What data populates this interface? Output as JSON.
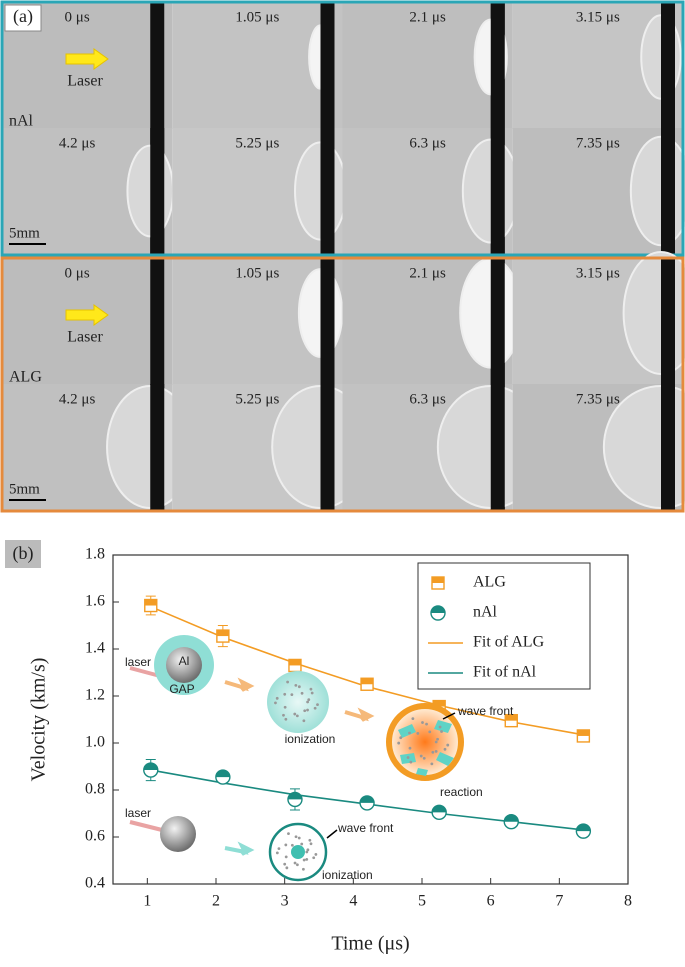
{
  "panel_a": {
    "label": "(a)",
    "groups": [
      {
        "name": "nAl",
        "laser": "Laser",
        "scale": "5mm",
        "color": "#2aa6b6",
        "times": [
          "0 μs",
          "1.05 μs",
          "2.1 μs",
          "3.15 μs",
          "4.2 μs",
          "5.25 μs",
          "6.3 μs",
          "7.35 μs"
        ]
      },
      {
        "name": "ALG",
        "laser": "Laser",
        "scale": "5mm",
        "color": "#e58a3c",
        "times": [
          "0 μs",
          "1.05 μs",
          "2.1 μs",
          "3.15 μs",
          "4.2 μs",
          "5.25 μs",
          "6.3 μs",
          "7.35 μs"
        ]
      }
    ]
  },
  "chart_data": {
    "type": "scatter",
    "panel_label": "(b)",
    "x_label": "Time (μs)",
    "y_label": "Velocity (km/s)",
    "x": [
      1.05,
      2.1,
      3.15,
      4.2,
      5.25,
      6.3,
      7.35
    ],
    "series": [
      {
        "name": "ALG",
        "color": "#f39c24",
        "marker": "square",
        "values": [
          1.585,
          1.455,
          1.33,
          1.25,
          1.155,
          1.095,
          1.03
        ],
        "errors": [
          0.04,
          0.045,
          0.015,
          0.015,
          0.015,
          0.01,
          0.02
        ]
      },
      {
        "name": "nAl",
        "color": "#1a8a80",
        "marker": "circle",
        "values": [
          0.885,
          0.855,
          0.76,
          0.745,
          0.705,
          0.665,
          0.625
        ],
        "errors": [
          0.045,
          0.015,
          0.045,
          0.01,
          0.01,
          0.01,
          0.01
        ]
      },
      {
        "name": "Fit of ALG",
        "color": "#f39c24",
        "marker": "line",
        "values": [
          1.58,
          1.45,
          1.34,
          1.24,
          1.16,
          1.09,
          1.035
        ]
      },
      {
        "name": "Fit of nAl",
        "color": "#1a8a80",
        "marker": "line",
        "values": [
          0.885,
          0.83,
          0.78,
          0.74,
          0.7,
          0.665,
          0.63
        ]
      }
    ],
    "xlim": [
      0.5,
      8
    ],
    "xticks": [
      1,
      2,
      3,
      4,
      5,
      6,
      7,
      8
    ],
    "ylim": [
      0.4,
      1.8
    ],
    "yticks": [
      0.4,
      0.6,
      0.8,
      {
        "value": 1,
        "label": "1.0"
      },
      1.2,
      1.4,
      1.6,
      1.8
    ],
    "legend": "upper right",
    "inset_labels": [
      "laser",
      "Al",
      "GAP",
      "ionization",
      "wave front",
      "reaction",
      "laser",
      "wave front",
      "ionization"
    ]
  }
}
